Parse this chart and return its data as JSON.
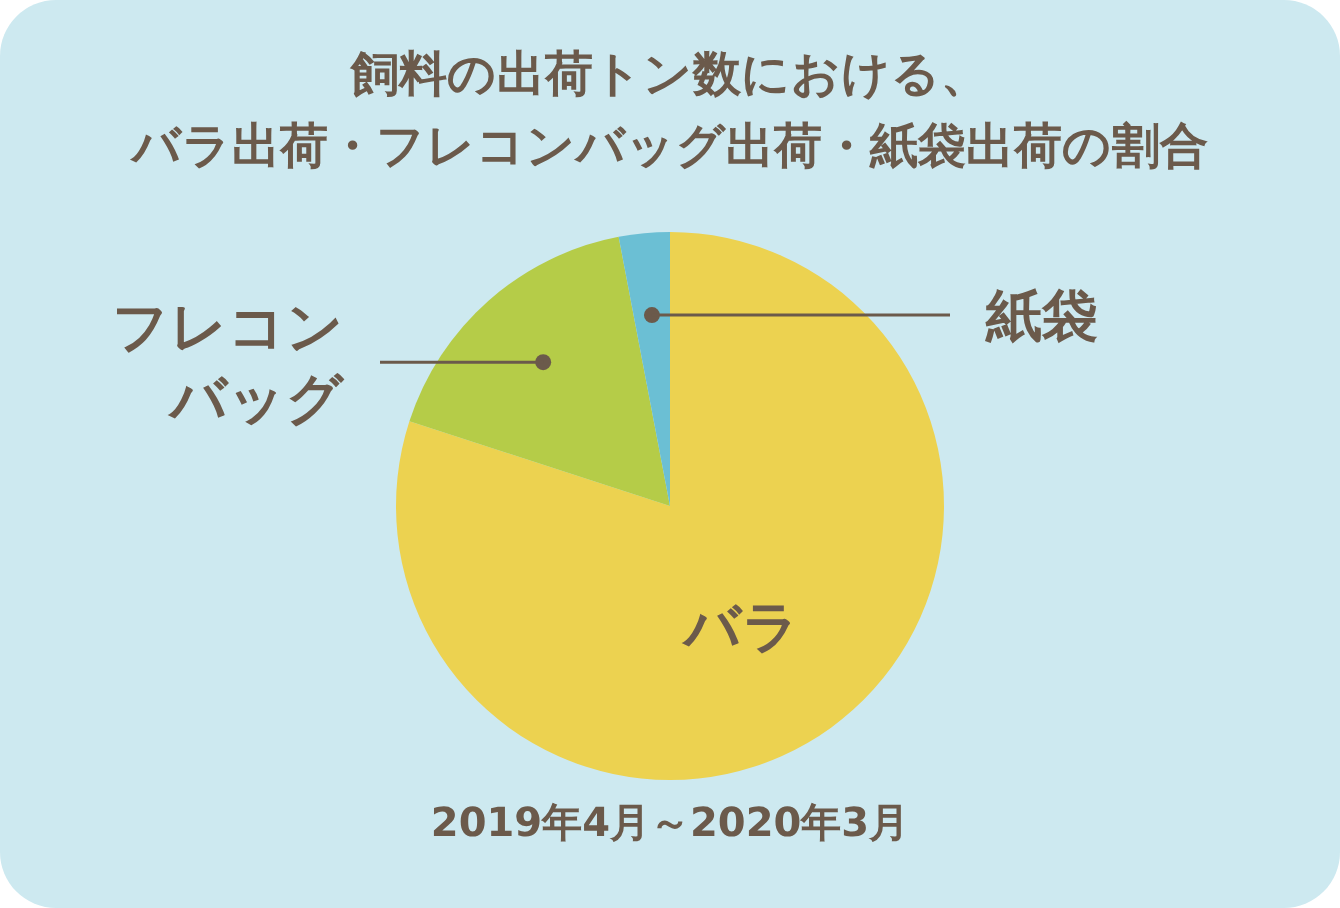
{
  "chart_data": {
    "type": "pie",
    "title": "飼料の出荷トン数における、バラ出荷・フレコンバッグ出荷・紙袋出荷の割合",
    "categories": [
      "バラ",
      "フレコンバッグ",
      "紙袋"
    ],
    "values": [
      80,
      17,
      3
    ],
    "colors": [
      "#ecd250",
      "#b5cc48",
      "#6bbfd4"
    ],
    "annotations": [
      "2019年4月～2020年3月"
    ]
  }
}
